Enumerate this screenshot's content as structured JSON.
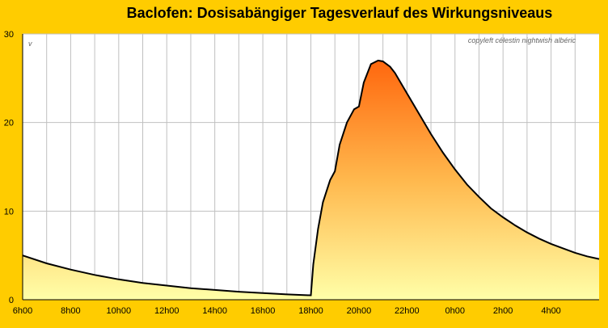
{
  "chart_data": {
    "type": "area",
    "title": "Baclofen: Dosisabängiger Tagesverlauf des Wirkungsniveaus",
    "ylabel_marker": "v",
    "copyright": "copyleft célestin nightwish albéric",
    "ylim": [
      0,
      30
    ],
    "yticks": [
      "0",
      "10",
      "20",
      "30"
    ],
    "xlim_hours": [
      6,
      30
    ],
    "xticks": [
      "6h00",
      "8h00",
      "10h00",
      "12h00",
      "14h00",
      "16h00",
      "18h00",
      "20h00",
      "22h00",
      "0h00",
      "2h00",
      "4h00"
    ],
    "grid": true,
    "series": [
      {
        "x": [
          6,
          7,
          8,
          9,
          10,
          11,
          12,
          13,
          14,
          15,
          16,
          17,
          17.95,
          18.0,
          18.1,
          18.3,
          18.5,
          18.8,
          19.0,
          19.2,
          19.5,
          19.8,
          20.0,
          20.2,
          20.5,
          20.8,
          21.0,
          21.3,
          21.5,
          22.0,
          22.5,
          23.0,
          23.5,
          24.0,
          24.5,
          25.0,
          25.5,
          26.0,
          26.5,
          27.0,
          27.5,
          28.0,
          28.5,
          29.0,
          29.5,
          30.0
        ],
        "y": [
          5.0,
          4.1,
          3.4,
          2.8,
          2.3,
          1.9,
          1.6,
          1.3,
          1.1,
          0.9,
          0.75,
          0.6,
          0.5,
          0.5,
          4.0,
          8.0,
          11.0,
          13.5,
          14.5,
          17.5,
          20.0,
          21.5,
          21.8,
          24.5,
          26.6,
          27.0,
          26.9,
          26.3,
          25.6,
          23.3,
          21.0,
          18.7,
          16.6,
          14.7,
          13.0,
          11.6,
          10.3,
          9.3,
          8.4,
          7.6,
          6.9,
          6.3,
          5.8,
          5.3,
          4.9,
          4.6
        ]
      }
    ],
    "colors": {
      "background": "#FFCC00",
      "plot": "#FFFFFF",
      "fill_top": "#FF5500",
      "fill_mid": "#FFB84D",
      "fill_bottom": "#FFFFA8",
      "line": "#000000",
      "grid": "#C0C0C0"
    }
  }
}
